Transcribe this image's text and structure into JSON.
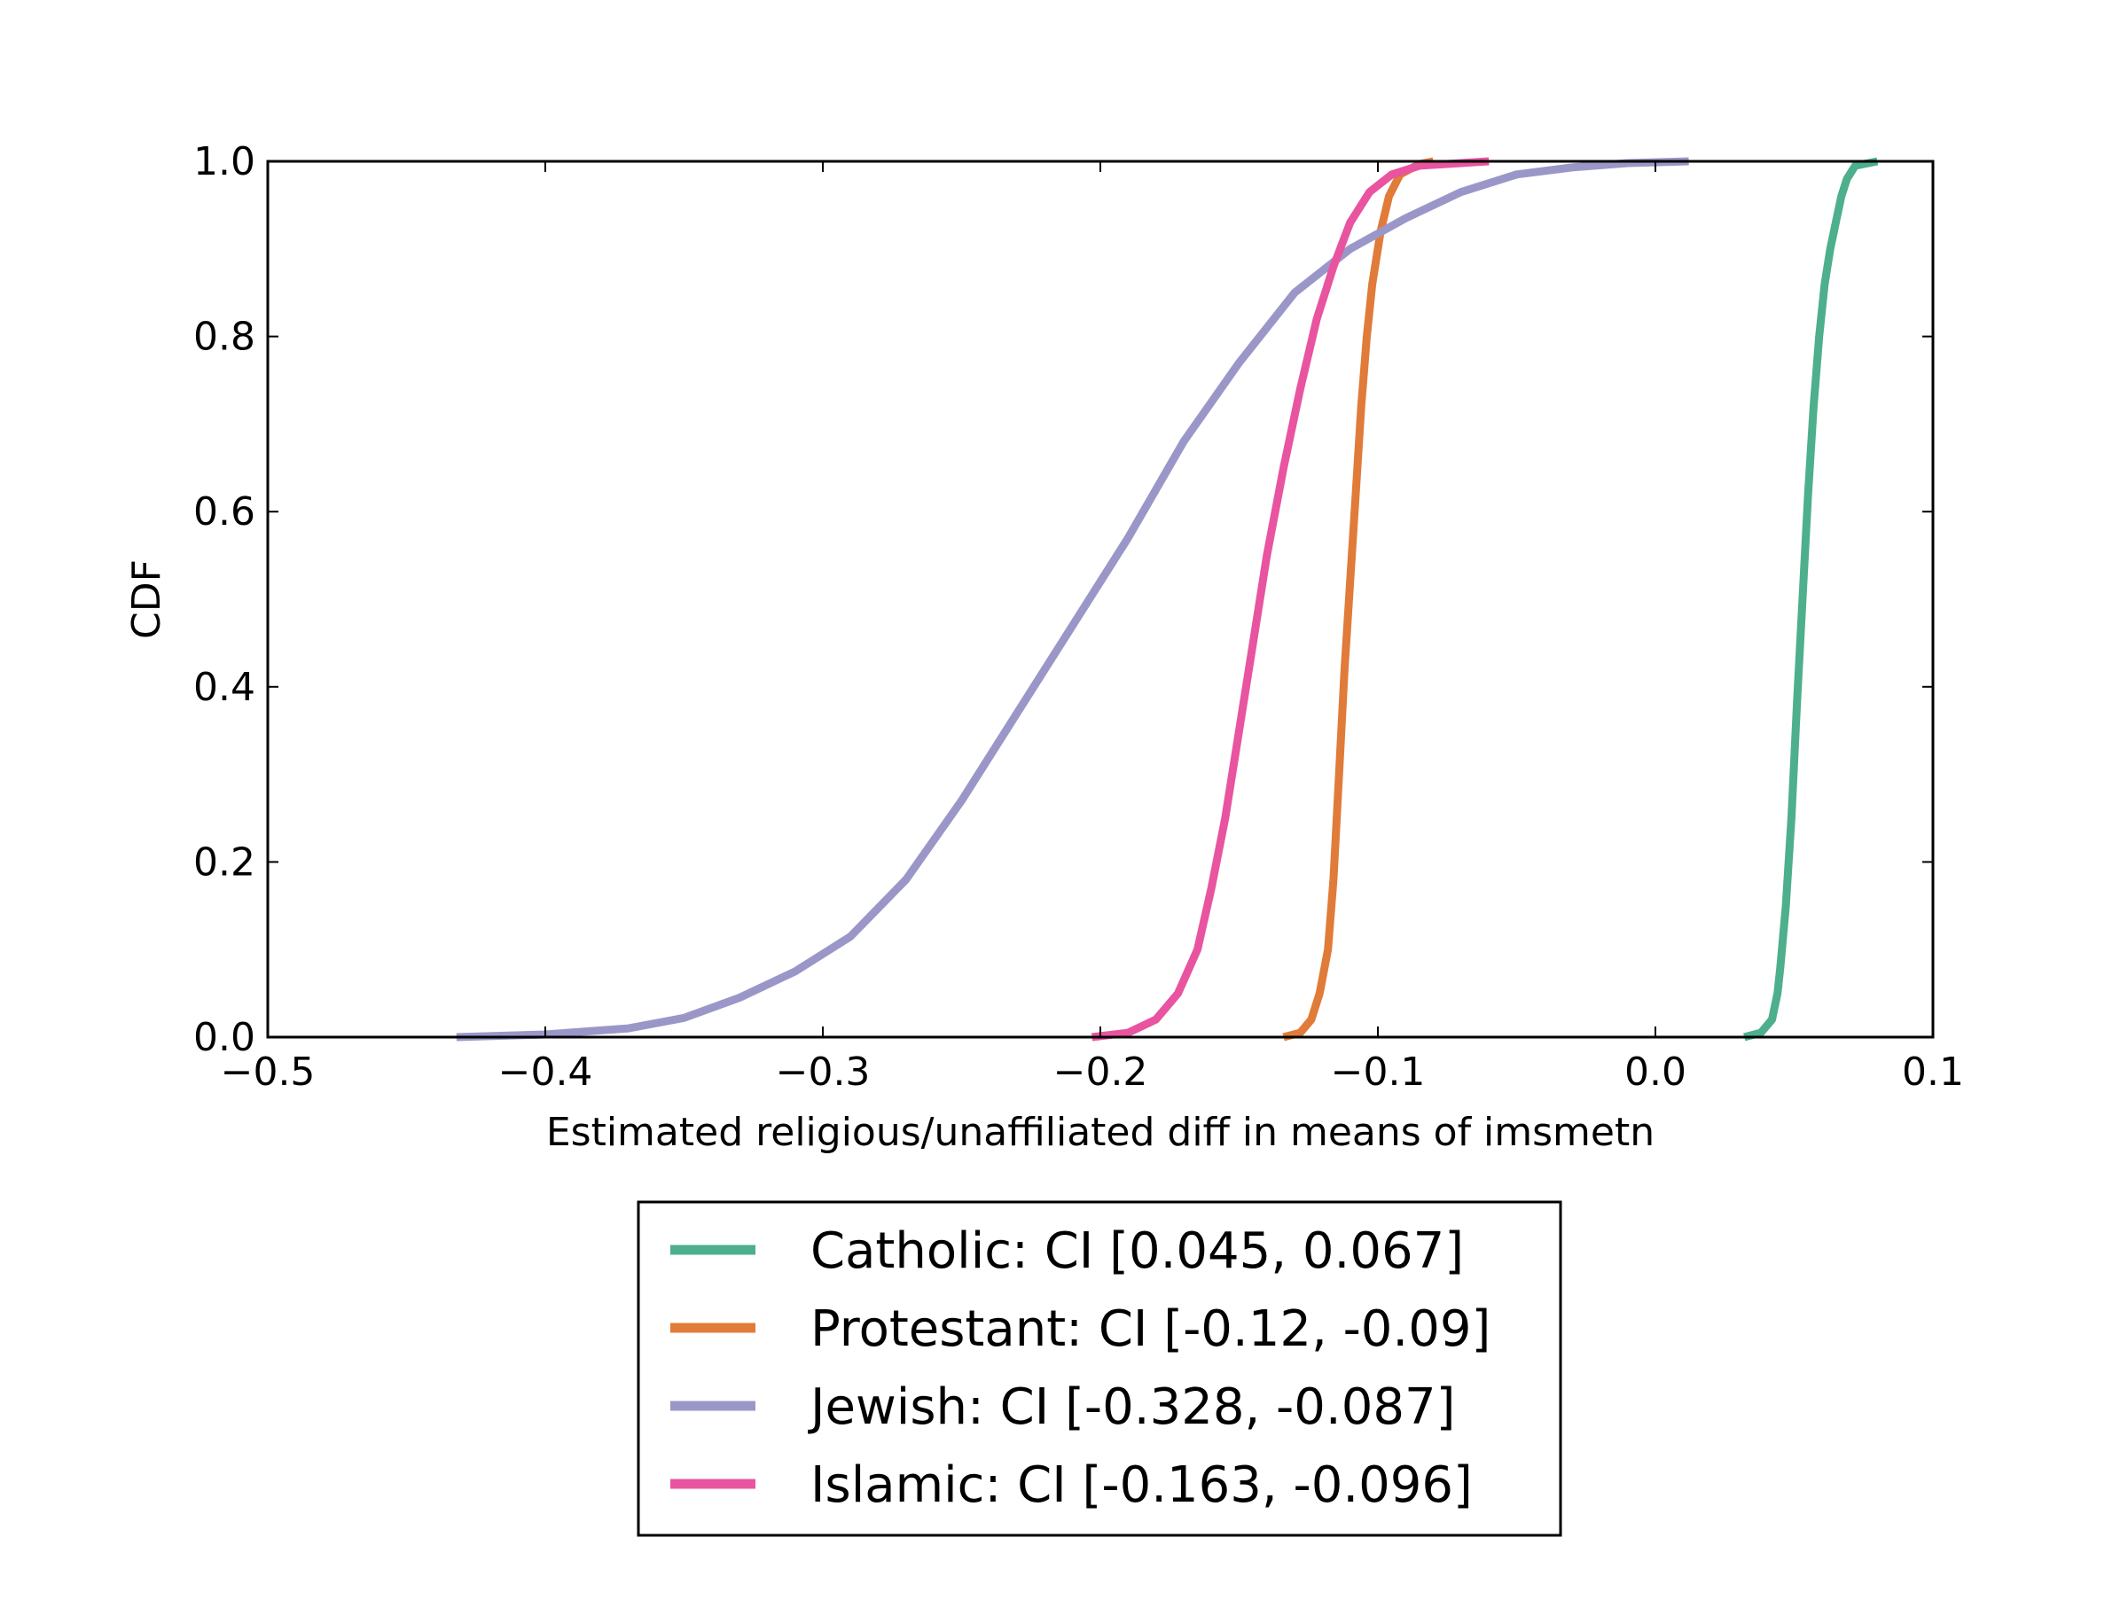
{
  "chart_data": {
    "type": "line",
    "title": "",
    "xlabel": "Estimated religious/unaffiliated diff in means of imsmetn",
    "ylabel": "CDF",
    "xlim": [
      -0.5,
      0.1
    ],
    "ylim": [
      0.0,
      1.0
    ],
    "x_ticks": [
      -0.5,
      -0.4,
      -0.3,
      -0.2,
      -0.1,
      0.0,
      0.1
    ],
    "x_tick_labels": [
      "−0.5",
      "−0.4",
      "−0.3",
      "−0.2",
      "−0.1",
      "0.0",
      "0.1"
    ],
    "y_ticks": [
      0.0,
      0.2,
      0.4,
      0.6,
      0.8,
      1.0
    ],
    "y_tick_labels": [
      "0.0",
      "0.2",
      "0.4",
      "0.6",
      "0.8",
      "1.0"
    ],
    "grid": false,
    "legend_position": "below plot, centered",
    "series": [
      {
        "name": "Catholic: CI [0.045, 0.067]",
        "color": "#4daf8c",
        "points": [
          [
            0.032,
            0.0
          ],
          [
            0.038,
            0.005
          ],
          [
            0.042,
            0.02
          ],
          [
            0.044,
            0.05
          ],
          [
            0.045,
            0.08
          ],
          [
            0.047,
            0.15
          ],
          [
            0.049,
            0.25
          ],
          [
            0.051,
            0.38
          ],
          [
            0.053,
            0.5
          ],
          [
            0.055,
            0.62
          ],
          [
            0.057,
            0.72
          ],
          [
            0.059,
            0.8
          ],
          [
            0.061,
            0.86
          ],
          [
            0.063,
            0.9
          ],
          [
            0.065,
            0.93
          ],
          [
            0.067,
            0.96
          ],
          [
            0.069,
            0.98
          ],
          [
            0.072,
            0.995
          ],
          [
            0.08,
            1.0
          ]
        ]
      },
      {
        "name": "Protestant: CI [-0.12, -0.09]",
        "color": "#e07b39",
        "points": [
          [
            -0.134,
            0.0
          ],
          [
            -0.128,
            0.005
          ],
          [
            -0.124,
            0.02
          ],
          [
            -0.121,
            0.05
          ],
          [
            -0.118,
            0.1
          ],
          [
            -0.116,
            0.18
          ],
          [
            -0.114,
            0.3
          ],
          [
            -0.112,
            0.42
          ],
          [
            -0.11,
            0.52
          ],
          [
            -0.108,
            0.62
          ],
          [
            -0.106,
            0.72
          ],
          [
            -0.104,
            0.8
          ],
          [
            -0.102,
            0.86
          ],
          [
            -0.099,
            0.92
          ],
          [
            -0.096,
            0.96
          ],
          [
            -0.092,
            0.985
          ],
          [
            -0.085,
            0.997
          ],
          [
            -0.08,
            1.0
          ]
        ]
      },
      {
        "name": "Jewish: CI [-0.328, -0.087]",
        "color": "#9a97c8",
        "points": [
          [
            -0.432,
            0.0
          ],
          [
            -0.4,
            0.003
          ],
          [
            -0.37,
            0.01
          ],
          [
            -0.35,
            0.022
          ],
          [
            -0.33,
            0.045
          ],
          [
            -0.31,
            0.075
          ],
          [
            -0.29,
            0.115
          ],
          [
            -0.27,
            0.18
          ],
          [
            -0.25,
            0.27
          ],
          [
            -0.23,
            0.37
          ],
          [
            -0.21,
            0.47
          ],
          [
            -0.19,
            0.57
          ],
          [
            -0.17,
            0.68
          ],
          [
            -0.15,
            0.77
          ],
          [
            -0.13,
            0.85
          ],
          [
            -0.11,
            0.9
          ],
          [
            -0.09,
            0.935
          ],
          [
            -0.07,
            0.965
          ],
          [
            -0.05,
            0.985
          ],
          [
            -0.03,
            0.993
          ],
          [
            -0.01,
            0.998
          ],
          [
            0.012,
            1.0
          ]
        ]
      },
      {
        "name": "Islamic: CI [-0.163, -0.096]",
        "color": "#e8549f",
        "points": [
          [
            -0.203,
            0.0
          ],
          [
            -0.19,
            0.005
          ],
          [
            -0.18,
            0.02
          ],
          [
            -0.172,
            0.05
          ],
          [
            -0.165,
            0.1
          ],
          [
            -0.16,
            0.17
          ],
          [
            -0.155,
            0.25
          ],
          [
            -0.15,
            0.35
          ],
          [
            -0.145,
            0.45
          ],
          [
            -0.14,
            0.55
          ],
          [
            -0.134,
            0.65
          ],
          [
            -0.128,
            0.74
          ],
          [
            -0.122,
            0.82
          ],
          [
            -0.116,
            0.88
          ],
          [
            -0.11,
            0.93
          ],
          [
            -0.103,
            0.965
          ],
          [
            -0.095,
            0.985
          ],
          [
            -0.085,
            0.995
          ],
          [
            -0.06,
            1.0
          ]
        ]
      }
    ]
  }
}
